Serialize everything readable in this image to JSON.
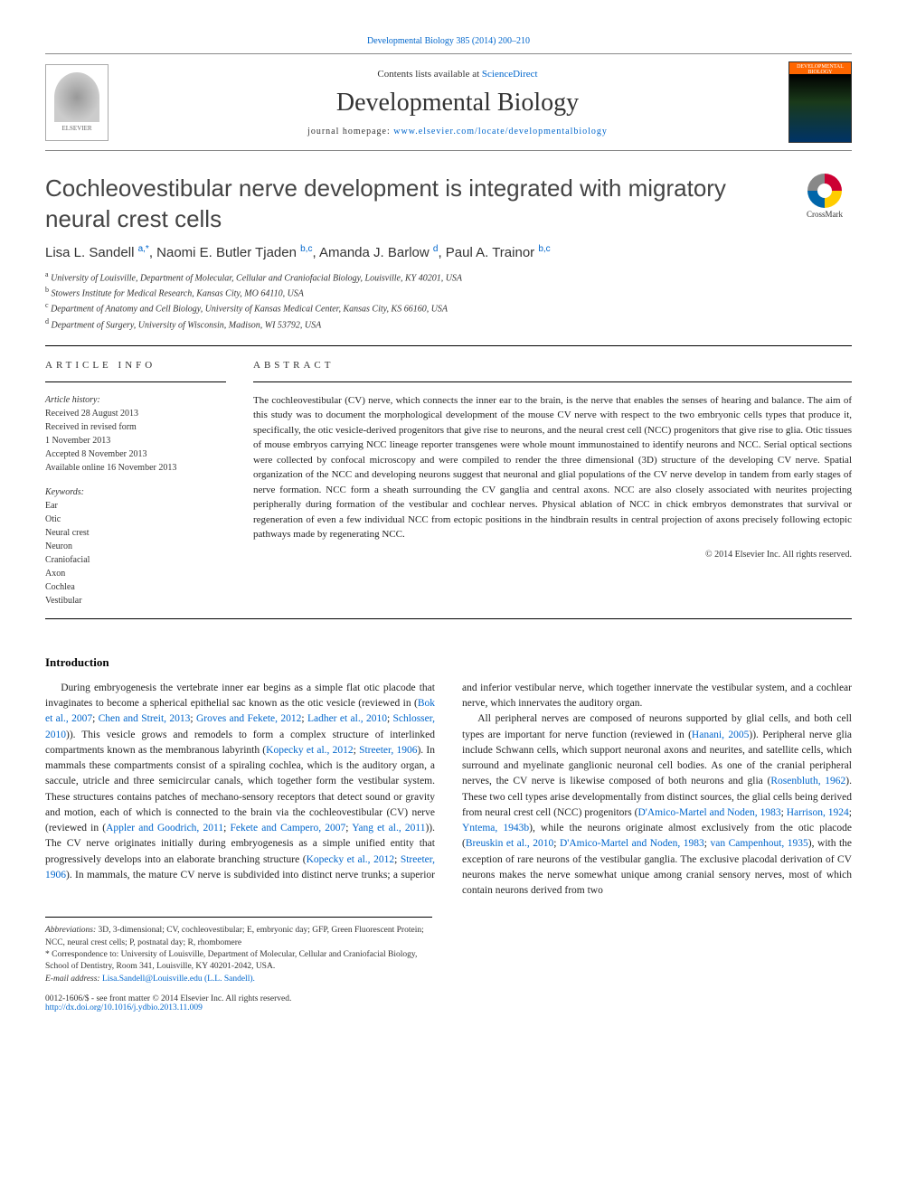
{
  "top_link": "Developmental Biology 385 (2014) 200–210",
  "header": {
    "contents_prefix": "Contents lists available at ",
    "contents_link": "ScienceDirect",
    "journal_name": "Developmental Biology",
    "homepage_prefix": "journal homepage: ",
    "homepage_url": "www.elsevier.com/locate/developmentalbiology",
    "elsevier_label": "ELSEVIER",
    "cover_label": "DEVELOPMENTAL BIOLOGY"
  },
  "title": "Cochleovestibular nerve development is integrated with migratory neural crest cells",
  "crossmark_label": "CrossMark",
  "authors_html": "Lisa L. Sandell <sup>a,*</sup>, Naomi E. Butler Tjaden <sup>b,c</sup>, Amanda J. Barlow <sup>d</sup>, Paul A. Trainor <sup>b,c</sup>",
  "affiliations": [
    {
      "sup": "a",
      "text": "University of Louisville, Department of Molecular, Cellular and Craniofacial Biology, Louisville, KY 40201, USA"
    },
    {
      "sup": "b",
      "text": "Stowers Institute for Medical Research, Kansas City, MO 64110, USA"
    },
    {
      "sup": "c",
      "text": "Department of Anatomy and Cell Biology, University of Kansas Medical Center, Kansas City, KS 66160, USA"
    },
    {
      "sup": "d",
      "text": "Department of Surgery, University of Wisconsin, Madison, WI 53792, USA"
    }
  ],
  "article_info_label": "article info",
  "abstract_label": "abstract",
  "history": {
    "label": "Article history:",
    "received": "Received 28 August 2013",
    "revised": "Received in revised form",
    "revised_date": "1 November 2013",
    "accepted": "Accepted 8 November 2013",
    "online": "Available online 16 November 2013"
  },
  "keywords_label": "Keywords:",
  "keywords": [
    "Ear",
    "Otic",
    "Neural crest",
    "Neuron",
    "Craniofacial",
    "Axon",
    "Cochlea",
    "Vestibular"
  ],
  "abstract_text": "The cochleovestibular (CV) nerve, which connects the inner ear to the brain, is the nerve that enables the senses of hearing and balance. The aim of this study was to document the morphological development of the mouse CV nerve with respect to the two embryonic cells types that produce it, specifically, the otic vesicle-derived progenitors that give rise to neurons, and the neural crest cell (NCC) progenitors that give rise to glia. Otic tissues of mouse embryos carrying NCC lineage reporter transgenes were whole mount immunostained to identify neurons and NCC. Serial optical sections were collected by confocal microscopy and were compiled to render the three dimensional (3D) structure of the developing CV nerve. Spatial organization of the NCC and developing neurons suggest that neuronal and glial populations of the CV nerve develop in tandem from early stages of nerve formation. NCC form a sheath surrounding the CV ganglia and central axons. NCC are also closely associated with neurites projecting peripherally during formation of the vestibular and cochlear nerves. Physical ablation of NCC in chick embryos demonstrates that survival or regeneration of even a few individual NCC from ectopic positions in the hindbrain results in central projection of axons precisely following ectopic pathways made by regenerating NCC.",
  "copyright": "© 2014 Elsevier Inc. All rights reserved.",
  "intro_heading": "Introduction",
  "intro_paragraphs": [
    "During embryogenesis the vertebrate inner ear begins as a simple flat otic placode that invaginates to become a spherical epithelial sac known as the otic vesicle (reviewed in (<span class='ref'>Bok et al., 2007</span>; <span class='ref'>Chen and Streit, 2013</span>; <span class='ref'>Groves and Fekete, 2012</span>; <span class='ref'>Ladher et al., 2010</span>; <span class='ref'>Schlosser, 2010</span>)). This vesicle grows and remodels to form a complex structure of interlinked compartments known as the membranous labyrinth (<span class='ref'>Kopecky et al., 2012</span>; <span class='ref'>Streeter, 1906</span>). In mammals these compartments consist of a spiraling cochlea, which is the auditory organ, a saccule, utricle and three semicircular canals, which together form the vestibular system. These structures contains patches of mechano-sensory receptors that detect sound or gravity and motion, each of which is connected to the brain via the cochleovestibular (CV) nerve (reviewed in (<span class='ref'>Appler and Goodrich, 2011</span>; <span class='ref'>Fekete and Campero, 2007</span>; <span class='ref'>Yang et al., 2011</span>)). The CV nerve originates initially during embryogenesis as a simple unified entity that progressively develops into an elaborate branching structure (<span class='ref'>Kopecky et al., 2012</span>; <span class='ref'>Streeter, 1906</span>). In mammals, the mature CV nerve is subdivided into distinct nerve trunks; a superior and inferior vestibular nerve, which together innervate the vestibular system, and a cochlear nerve, which innervates the auditory organ.",
    "All peripheral nerves are composed of neurons supported by glial cells, and both cell types are important for nerve function (reviewed in (<span class='ref'>Hanani, 2005</span>)). Peripheral nerve glia include Schwann cells, which support neuronal axons and neurites, and satellite cells, which surround and myelinate ganglionic neuronal cell bodies. As one of the cranial peripheral nerves, the CV nerve is likewise composed of both neurons and glia (<span class='ref'>Rosenbluth, 1962</span>). These two cell types arise developmentally from distinct sources, the glial cells being derived from neural crest cell (NCC) progenitors (<span class='ref'>D'Amico-Martel and Noden, 1983</span>; <span class='ref'>Harrison, 1924</span>; <span class='ref'>Yntema, 1943b</span>), while the neurons originate almost exclusively from the otic placode (<span class='ref'>Breuskin et al., 2010</span>; <span class='ref'>D'Amico-Martel and Noden, 1983</span>; <span class='ref'>van Campenhout, 1935</span>), with the exception of rare neurons of the vestibular ganglia. The exclusive placodal derivation of CV neurons makes the nerve somewhat unique among cranial sensory nerves, most of which contain neurons derived from two"
  ],
  "footnotes": {
    "abbrev_label": "Abbreviations:",
    "abbrev_text": " 3D, 3-dimensional; CV, cochleovestibular; E, embryonic day; GFP, Green Fluorescent Protein; NCC, neural crest cells; P, postnatal day; R, rhombomere",
    "corr_label": "* Correspondence to:",
    "corr_text": " University of Louisville, Department of Molecular, Cellular and Craniofacial Biology, School of Dentistry, Room 341, Louisville, KY 40201-2042, USA.",
    "email_label": "E-mail address: ",
    "email": "Lisa.Sandell@Louisville.edu (L.L. Sandell)."
  },
  "footer": {
    "issn": "0012-1606/$ - see front matter © 2014 Elsevier Inc. All rights reserved.",
    "doi": "http://dx.doi.org/10.1016/j.ydbio.2013.11.009"
  }
}
